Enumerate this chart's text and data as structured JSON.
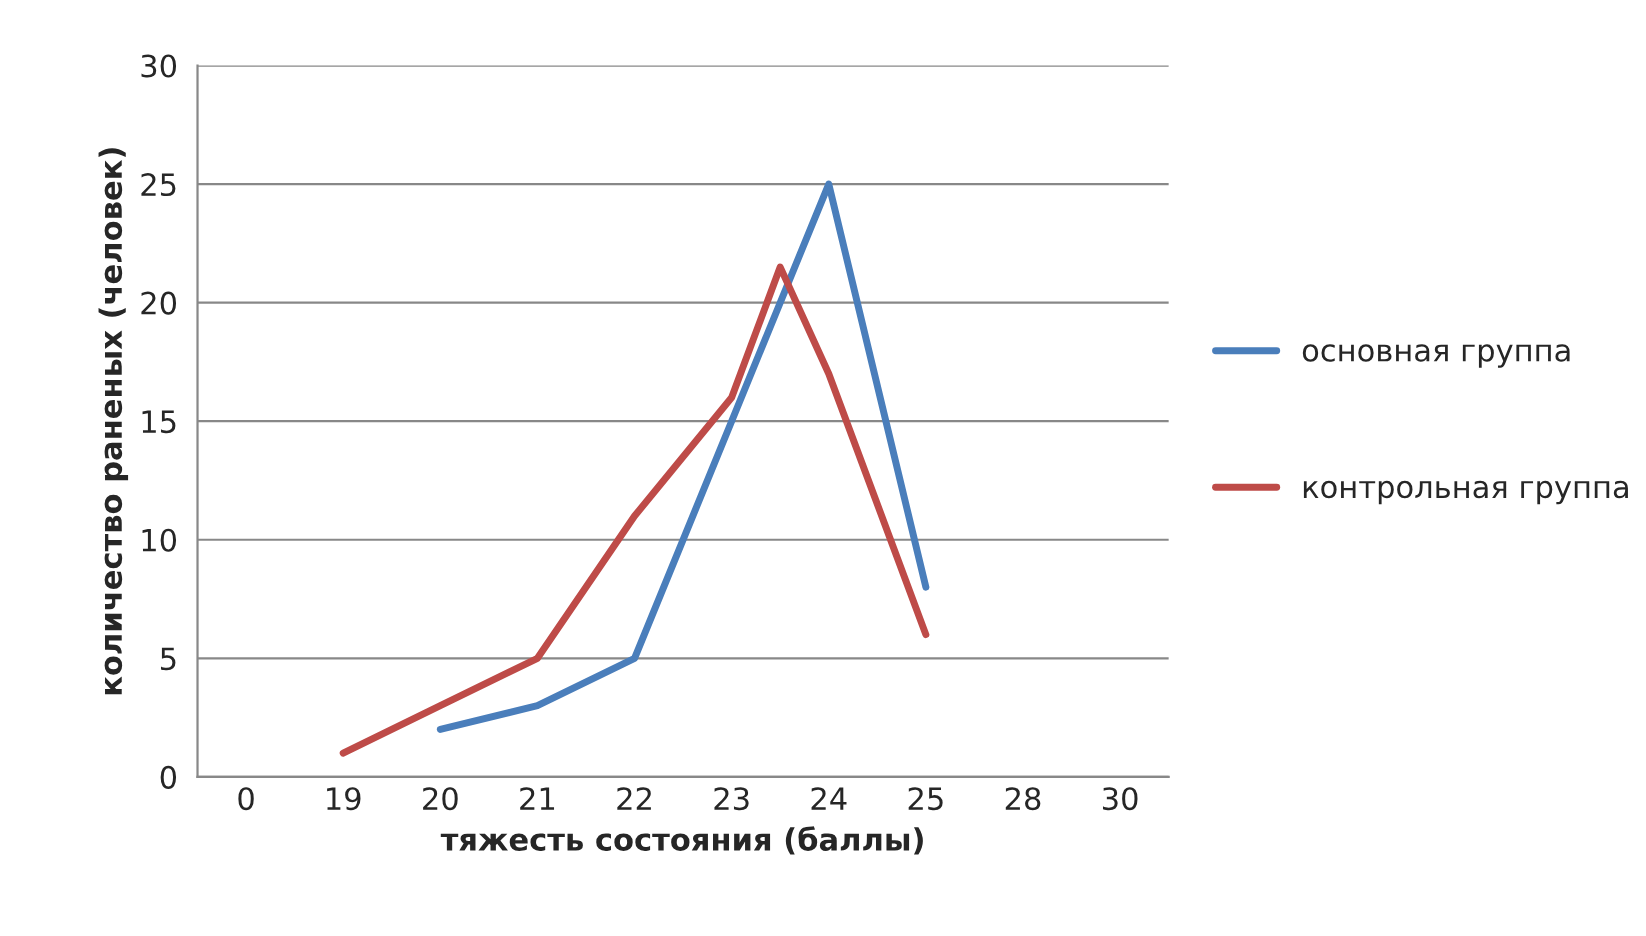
{
  "chart_data": {
    "type": "line",
    "xlabel": "тяжесть состояния (баллы)",
    "ylabel": "количество раненых (человек)",
    "categories": [
      "0",
      null,
      "19",
      null,
      "20",
      null,
      "21",
      null,
      "22",
      null,
      "23",
      null,
      "24",
      null,
      "25",
      null,
      "28",
      null,
      "30"
    ],
    "ylim": [
      0,
      30
    ],
    "yticks": [
      0,
      5,
      10,
      15,
      20,
      25,
      30
    ],
    "grid": "y",
    "legend": "right",
    "marker": "none",
    "line_style": "solid",
    "series": [
      {
        "name": "основная группа",
        "color": "#4a7ebb",
        "values": [
          null,
          null,
          null,
          null,
          2,
          null,
          3,
          null,
          5,
          null,
          15,
          null,
          25,
          null,
          8,
          null,
          null,
          null,
          null
        ]
      },
      {
        "name": "контрольная группа",
        "color": "#be4b48",
        "values": [
          null,
          null,
          1,
          null,
          3,
          null,
          5,
          null,
          11,
          null,
          16,
          21.5,
          17,
          null,
          6,
          null,
          null,
          null,
          null
        ]
      }
    ]
  }
}
